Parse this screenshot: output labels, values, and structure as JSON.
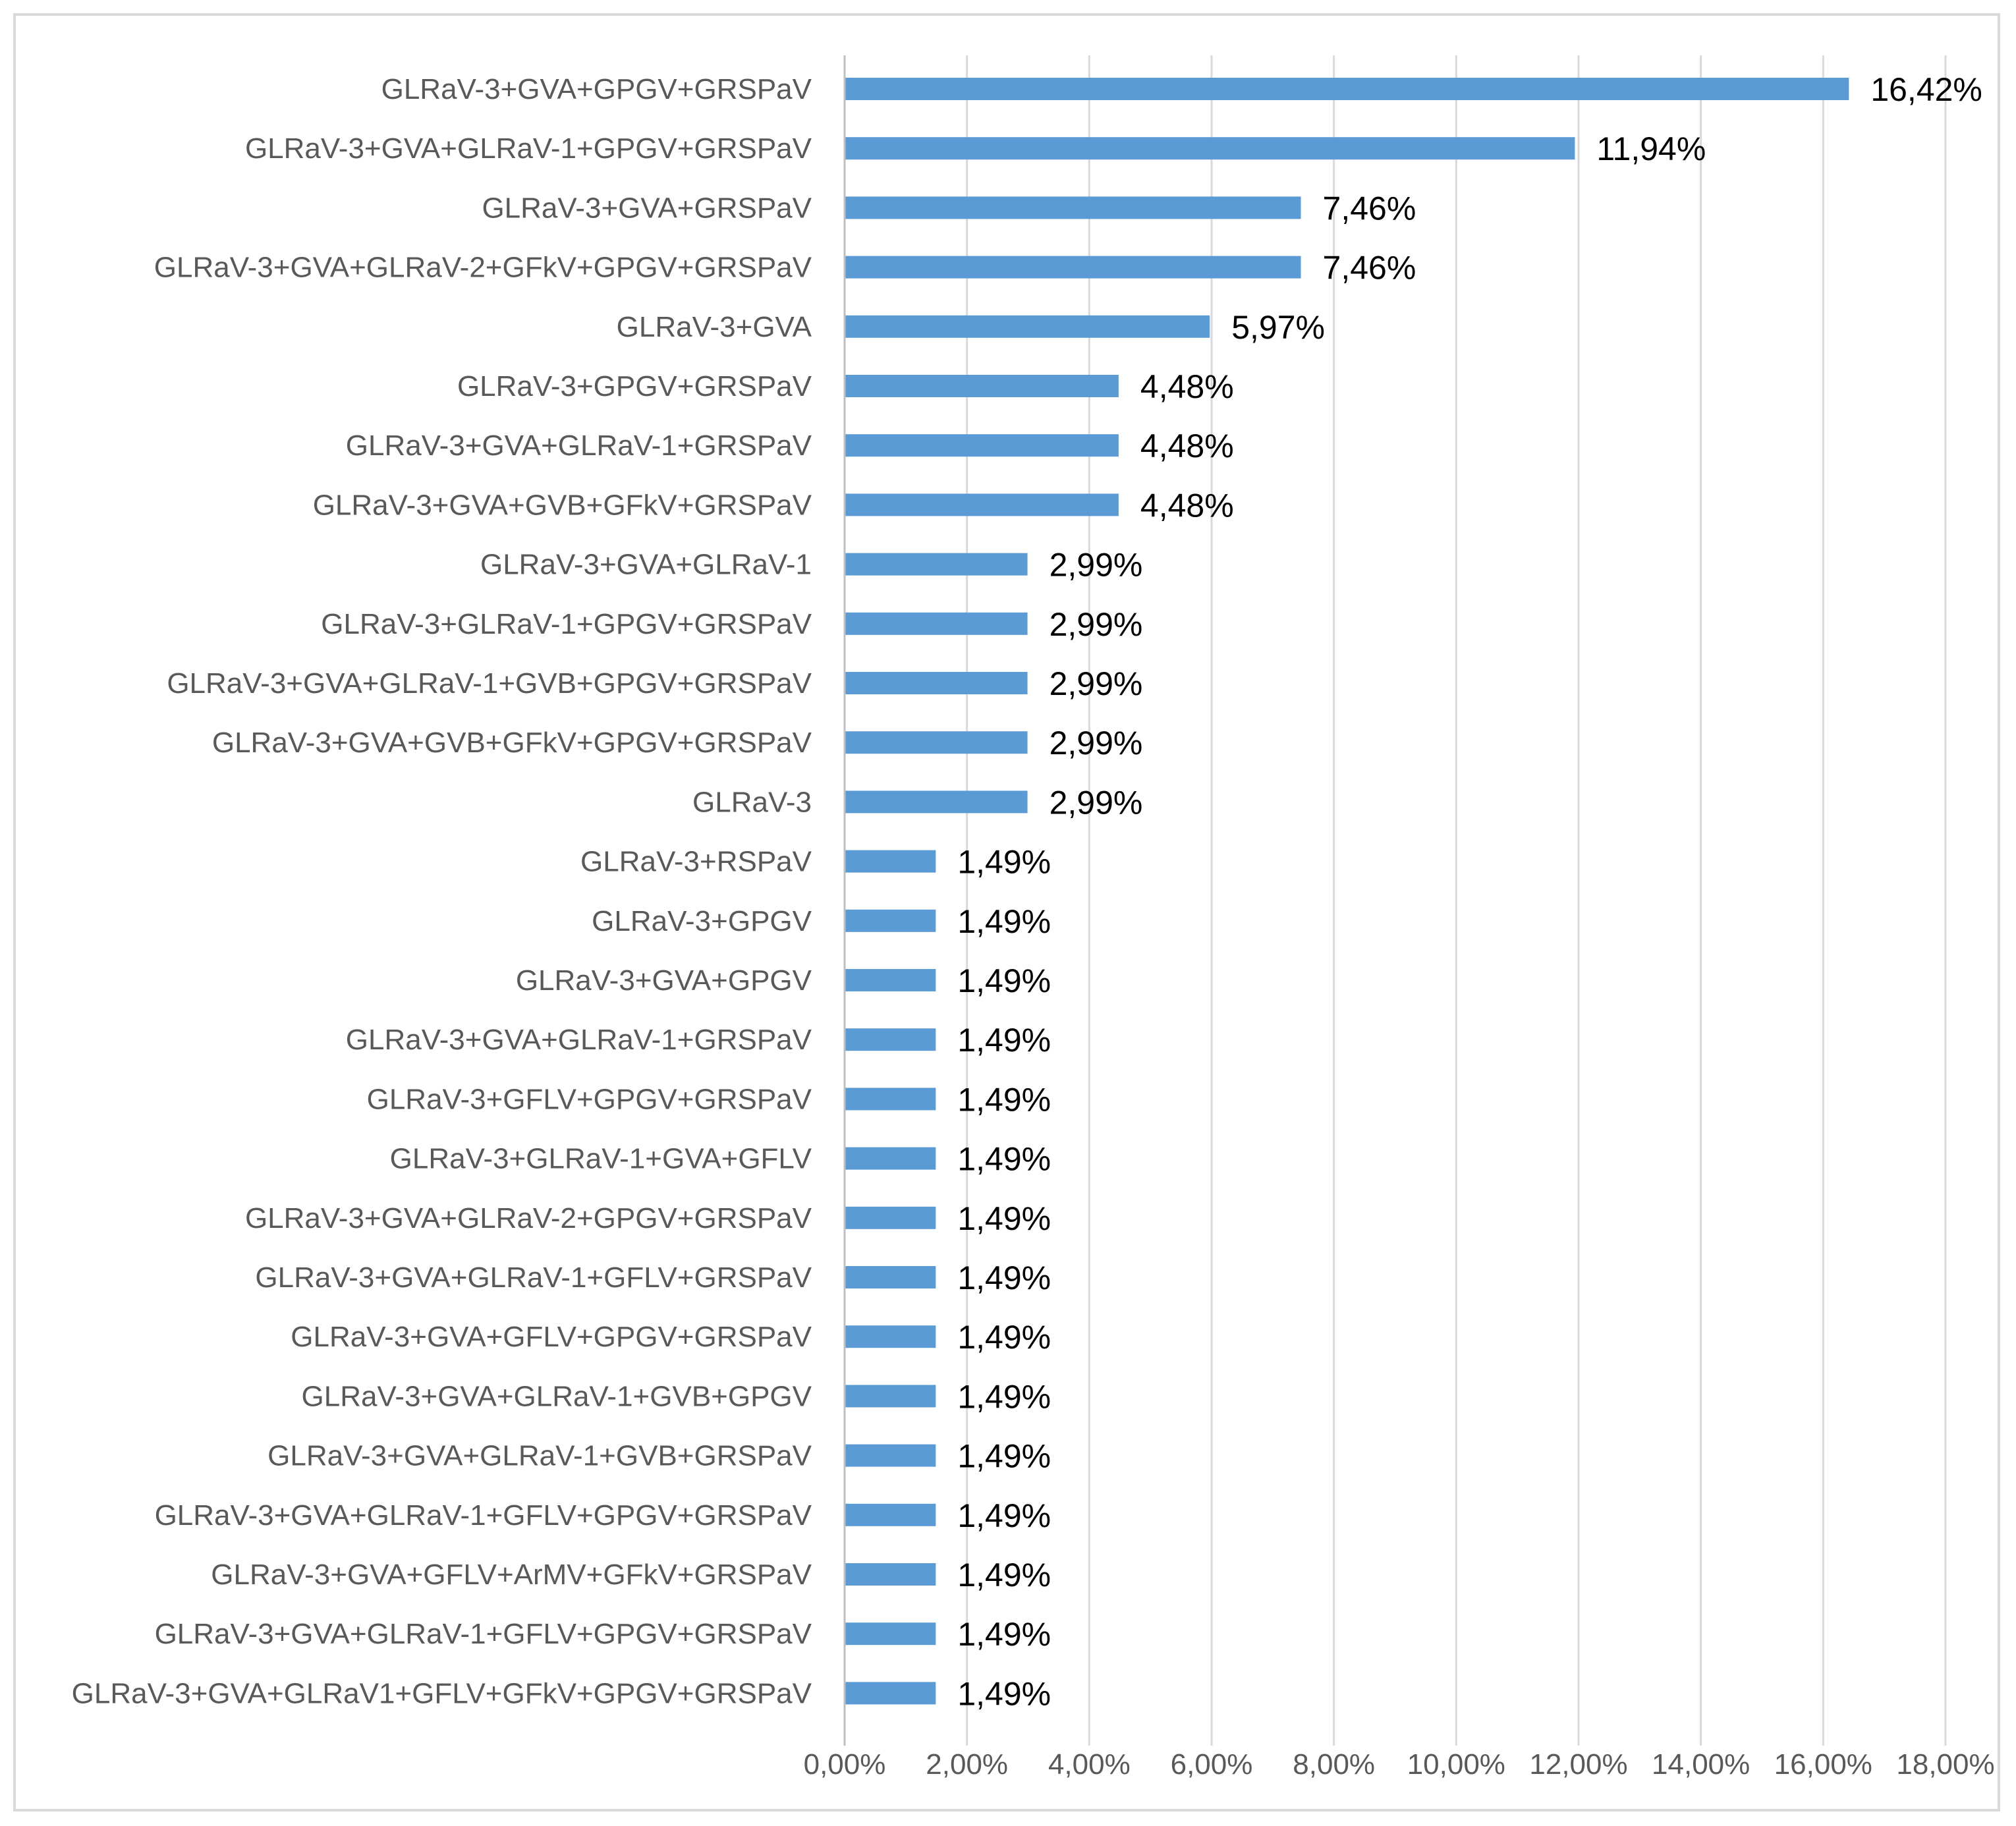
{
  "chart_data": {
    "type": "bar",
    "orientation": "horizontal",
    "title": "",
    "xlabel": "",
    "ylabel": "",
    "xlim": [
      0,
      18
    ],
    "grid": true,
    "legend": "none",
    "bar_color": "#5b9bd5",
    "x_ticks": [
      0,
      2,
      4,
      6,
      8,
      10,
      12,
      14,
      16,
      18
    ],
    "x_tick_labels": [
      "0,00%",
      "2,00%",
      "4,00%",
      "6,00%",
      "8,00%",
      "10,00%",
      "12,00%",
      "14,00%",
      "16,00%",
      "18,00%"
    ],
    "categories": [
      "GLRaV-3+GVA+GPGV+GRSPaV",
      "GLRaV-3+GVA+GLRaV-1+GPGV+GRSPaV",
      "GLRaV-3+GVA+GRSPaV",
      "GLRaV-3+GVA+GLRaV-2+GFkV+GPGV+GRSPaV",
      "GLRaV-3+GVA",
      "GLRaV-3+GPGV+GRSPaV",
      "GLRaV-3+GVA+GLRaV-1+GRSPaV",
      "GLRaV-3+GVA+GVB+GFkV+GRSPaV",
      "GLRaV-3+GVA+GLRaV-1",
      "GLRaV-3+GLRaV-1+GPGV+GRSPaV",
      "GLRaV-3+GVA+GLRaV-1+GVB+GPGV+GRSPaV",
      "GLRaV-3+GVA+GVB+GFkV+GPGV+GRSPaV",
      "GLRaV-3",
      "GLRaV-3+RSPaV",
      "GLRaV-3+GPGV",
      "GLRaV-3+GVA+GPGV",
      "GLRaV-3+GVA+GLRaV-1+GRSPaV",
      "GLRaV-3+GFLV+GPGV+GRSPaV",
      "GLRaV-3+GLRaV-1+GVA+GFLV",
      "GLRaV-3+GVA+GLRaV-2+GPGV+GRSPaV",
      "GLRaV-3+GVA+GLRaV-1+GFLV+GRSPaV",
      "GLRaV-3+GVA+GFLV+GPGV+GRSPaV",
      "GLRaV-3+GVA+GLRaV-1+GVB+GPGV",
      "GLRaV-3+GVA+GLRaV-1+GVB+GRSPaV",
      "GLRaV-3+GVA+GLRaV-1+GFLV+GPGV+GRSPaV",
      "GLRaV-3+GVA+GFLV+ArMV+GFkV+GRSPaV",
      "GLRaV-3+GVA+GLRaV-1+GFLV+GPGV+GRSPaV",
      "GLRaV-3+GVA+GLRaV1+GFLV+GFkV+GPGV+GRSPaV"
    ],
    "values": [
      16.42,
      11.94,
      7.46,
      7.46,
      5.97,
      4.48,
      4.48,
      4.48,
      2.99,
      2.99,
      2.99,
      2.99,
      2.99,
      1.49,
      1.49,
      1.49,
      1.49,
      1.49,
      1.49,
      1.49,
      1.49,
      1.49,
      1.49,
      1.49,
      1.49,
      1.49,
      1.49,
      1.49
    ],
    "data_labels": [
      "16,42%",
      "11,94%",
      "7,46%",
      "7,46%",
      "5,97%",
      "4,48%",
      "4,48%",
      "4,48%",
      "2,99%",
      "2,99%",
      "2,99%",
      "2,99%",
      "2,99%",
      "1,49%",
      "1,49%",
      "1,49%",
      "1,49%",
      "1,49%",
      "1,49%",
      "1,49%",
      "1,49%",
      "1,49%",
      "1,49%",
      "1,49%",
      "1,49%",
      "1,49%",
      "1,49%",
      "1,49%"
    ]
  }
}
